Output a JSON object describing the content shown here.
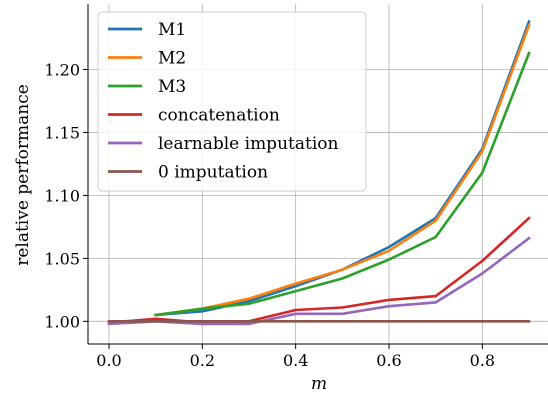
{
  "chart_data": {
    "type": "line",
    "xlabel": "m",
    "ylabel": "relative performance",
    "xlim": [
      -0.045,
      0.945
    ],
    "ylim": [
      0.982,
      1.252
    ],
    "xticks": [
      0.0,
      0.2,
      0.4,
      0.6,
      0.8
    ],
    "xtick_labels": [
      "0.0",
      "0.2",
      "0.4",
      "0.6",
      "0.8"
    ],
    "yticks": [
      1.0,
      1.05,
      1.1,
      1.15,
      1.2
    ],
    "ytick_labels": [
      "1.00",
      "1.05",
      "1.10",
      "1.15",
      "1.20"
    ],
    "grid": true,
    "legend_position": "top-left",
    "series": [
      {
        "name": "M1",
        "color": "#1f77b4",
        "x": [
          0.1,
          0.2,
          0.3,
          0.4,
          0.5,
          0.6,
          0.7,
          0.8,
          0.9
        ],
        "y": [
          1.005,
          1.008,
          1.016,
          1.028,
          1.041,
          1.059,
          1.082,
          1.137,
          1.238
        ]
      },
      {
        "name": "M2",
        "color": "#ff7f0e",
        "x": [
          0.1,
          0.2,
          0.3,
          0.4,
          0.5,
          0.6,
          0.7,
          0.8,
          0.9
        ],
        "y": [
          1.005,
          1.01,
          1.018,
          1.03,
          1.041,
          1.056,
          1.08,
          1.135,
          1.235
        ]
      },
      {
        "name": "M3",
        "color": "#2ca02c",
        "x": [
          0.1,
          0.2,
          0.3,
          0.4,
          0.5,
          0.6,
          0.7,
          0.8,
          0.9
        ],
        "y": [
          1.005,
          1.01,
          1.014,
          1.024,
          1.034,
          1.049,
          1.067,
          1.118,
          1.213
        ]
      },
      {
        "name": "concatenation",
        "color": "#d62728",
        "x": [
          0.0,
          0.1,
          0.2,
          0.3,
          0.4,
          0.5,
          0.6,
          0.7,
          0.8,
          0.9
        ],
        "y": [
          0.999,
          1.002,
          0.999,
          1.0,
          1.009,
          1.011,
          1.017,
          1.02,
          1.048,
          1.082
        ]
      },
      {
        "name": "learnable imputation",
        "color": "#9467bd",
        "x": [
          0.0,
          0.1,
          0.2,
          0.3,
          0.4,
          0.5,
          0.6,
          0.7,
          0.8,
          0.9
        ],
        "y": [
          0.998,
          1.0,
          0.998,
          0.998,
          1.006,
          1.006,
          1.012,
          1.015,
          1.038,
          1.066
        ]
      },
      {
        "name": "0 imputation",
        "color": "#8c564b",
        "x": [
          0.0,
          0.1,
          0.2,
          0.3,
          0.4,
          0.5,
          0.6,
          0.7,
          0.8,
          0.9
        ],
        "y": [
          1.0,
          1.0,
          1.0,
          1.0,
          1.0,
          1.0,
          1.0,
          1.0,
          1.0,
          1.0
        ]
      }
    ]
  }
}
